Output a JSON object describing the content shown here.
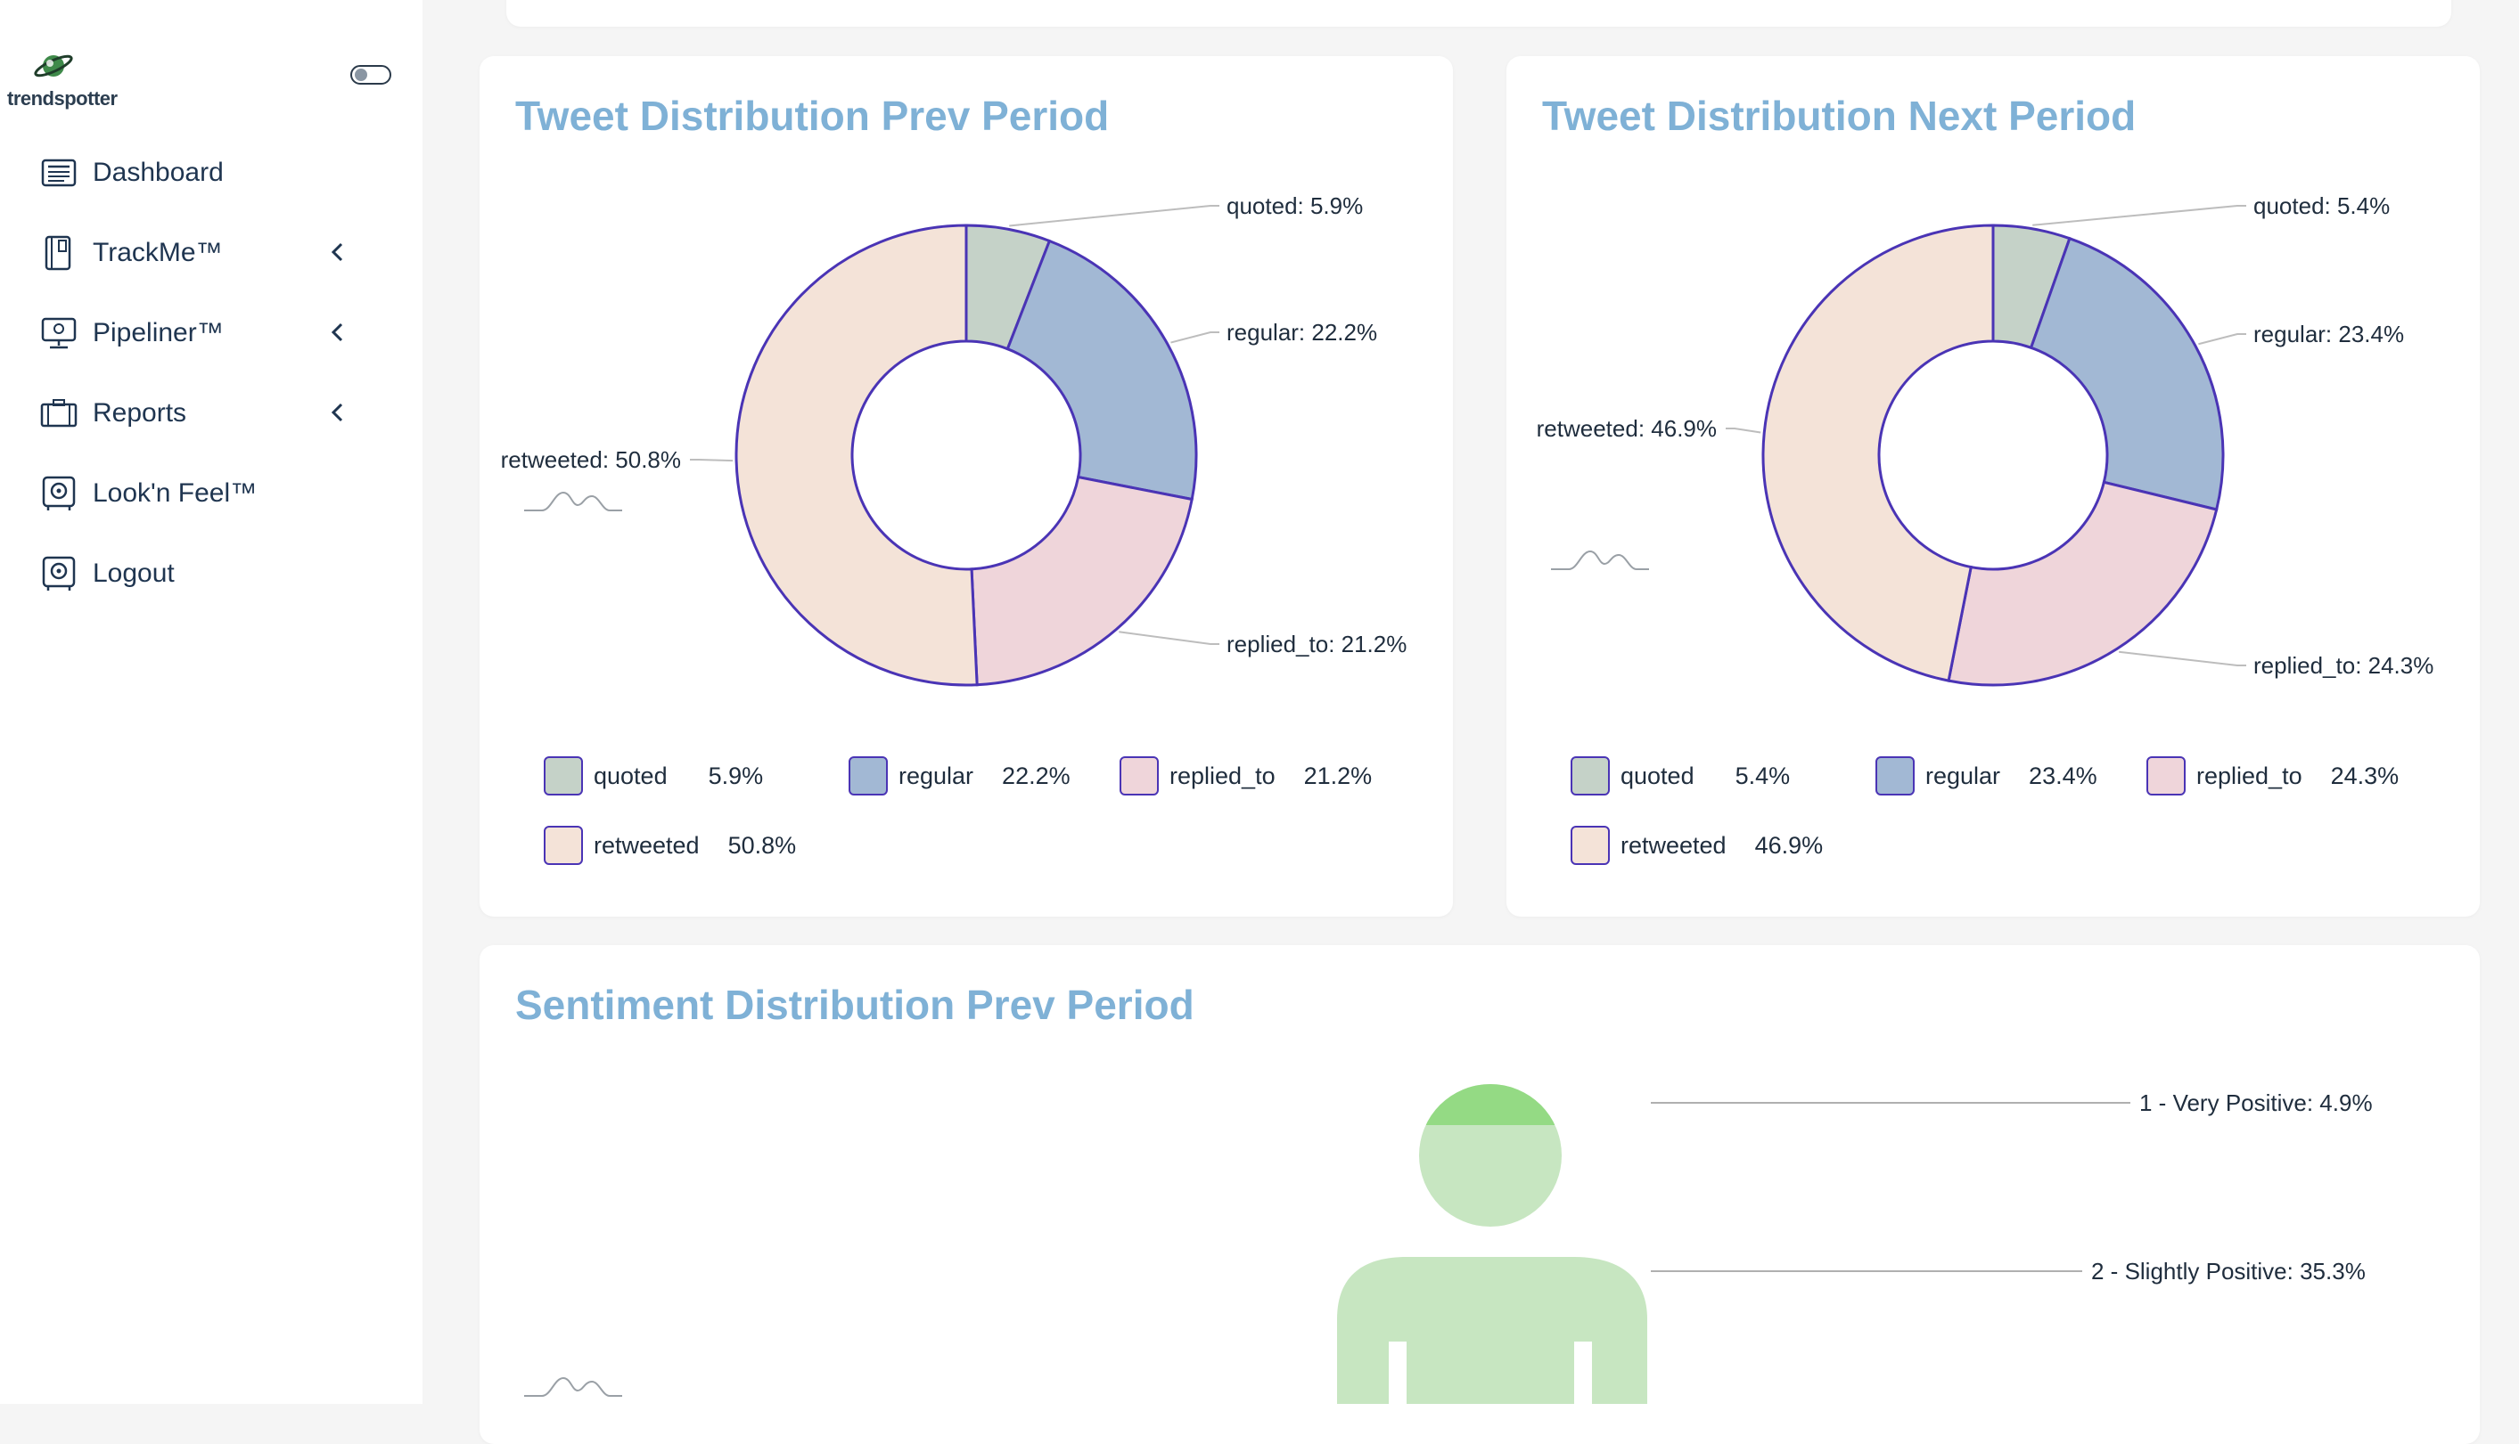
{
  "app": {
    "logo_text": "trendspotter"
  },
  "sidebar": {
    "items": [
      {
        "label": "Dashboard",
        "icon": "newspaper-icon",
        "chevron": false
      },
      {
        "label": "TrackMe™",
        "icon": "book-icon",
        "chevron": true
      },
      {
        "label": "Pipeliner™",
        "icon": "monitor-icon",
        "chevron": true
      },
      {
        "label": "Reports",
        "icon": "briefcase-icon",
        "chevron": true
      },
      {
        "label": "Look'n Feel™",
        "icon": "safe-icon",
        "chevron": false
      },
      {
        "label": "Logout",
        "icon": "safe-icon",
        "chevron": false
      }
    ]
  },
  "colors": {
    "quoted": "#c5d2c8",
    "regular": "#a2b8d4",
    "replied_to": "#efd5da",
    "retweeted": "#f4e3d8",
    "border": "#4a34b5",
    "title": "#7fb1d6",
    "very_positive": "#94da84",
    "slightly_positive": "#c7e6c1"
  },
  "cards": {
    "prev": {
      "title": "Tweet Distribution Prev Period",
      "labels": {
        "quoted": "quoted: 5.9%",
        "regular": "regular: 22.2%",
        "replied_to": "replied_to: 21.2%",
        "retweeted": "retweeted: 50.8%"
      },
      "legend": [
        {
          "name": "quoted",
          "value": "5.9%"
        },
        {
          "name": "regular",
          "value": "22.2%"
        },
        {
          "name": "replied_to",
          "value": "21.2%"
        },
        {
          "name": "retweeted",
          "value": "50.8%"
        }
      ]
    },
    "next": {
      "title": "Tweet Distribution Next Period",
      "labels": {
        "quoted": "quoted: 5.4%",
        "regular": "regular: 23.4%",
        "replied_to": "replied_to: 24.3%",
        "retweeted": "retweeted: 46.9%"
      },
      "legend": [
        {
          "name": "quoted",
          "value": "5.4%"
        },
        {
          "name": "regular",
          "value": "23.4%"
        },
        {
          "name": "replied_to",
          "value": "24.3%"
        },
        {
          "name": "retweeted",
          "value": "46.9%"
        }
      ]
    },
    "sentiment": {
      "title": "Sentiment Distribution Prev Period",
      "labels": {
        "very_positive": "1 - Very Positive: 4.9%",
        "slightly_positive": "2 - Slightly Positive: 35.3%"
      }
    }
  },
  "chart_data": [
    {
      "type": "pie",
      "title": "Tweet Distribution Prev Period",
      "categories": [
        "quoted",
        "regular",
        "replied_to",
        "retweeted"
      ],
      "values": [
        5.9,
        22.2,
        21.2,
        50.8
      ]
    },
    {
      "type": "pie",
      "title": "Tweet Distribution Next Period",
      "categories": [
        "quoted",
        "regular",
        "replied_to",
        "retweeted"
      ],
      "values": [
        5.4,
        23.4,
        24.3,
        46.9
      ]
    },
    {
      "type": "pictorial",
      "title": "Sentiment Distribution Prev Period",
      "categories": [
        "1 - Very Positive",
        "2 - Slightly Positive"
      ],
      "values": [
        4.9,
        35.3
      ]
    }
  ]
}
